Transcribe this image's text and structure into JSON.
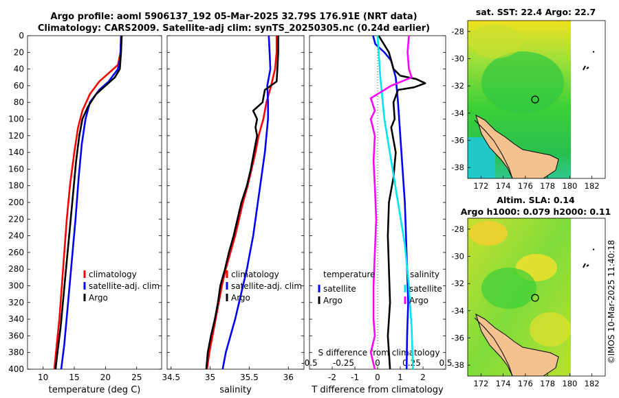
{
  "title": {
    "line1": "Argo profile: aoml 5906137_192 05-Mar-2025 32.79S 176.91E (NRT data)",
    "line2": "Climatology: CARS2009. Satellite-adj clim: synTS_20250305.nc (0.24d earlier)"
  },
  "credit": "©IMOS 10-Mar-2025 11:40:18",
  "colors": {
    "climatology": "#ff0000",
    "satellite": "#0000ff",
    "argo": "#000000",
    "magenta": "#ff00ff",
    "cyan": "#00e5ee",
    "land": "#f5c18e"
  },
  "chart_data": [
    {
      "type": "line",
      "name": "temperature-profile",
      "xlabel": "temperature (deg C)",
      "xlim": [
        7.5,
        29
      ],
      "xticks": [
        10,
        15,
        20,
        25
      ],
      "ylim": [
        0,
        400
      ],
      "yticks": [
        0,
        20,
        40,
        60,
        80,
        100,
        120,
        140,
        160,
        180,
        200,
        220,
        240,
        260,
        280,
        300,
        320,
        340,
        360,
        380,
        400
      ],
      "legend": {
        "position": "lower-right",
        "entries": [
          "climatology",
          "satellite-adj. clim",
          "Argo"
        ]
      },
      "series": [
        {
          "name": "climatology",
          "color": "#ff0000",
          "points": [
            [
              22.5,
              0
            ],
            [
              22.4,
              20
            ],
            [
              22.0,
              35
            ],
            [
              20.5,
              45
            ],
            [
              19.0,
              55
            ],
            [
              17.5,
              70
            ],
            [
              16.3,
              90
            ],
            [
              15.6,
              110
            ],
            [
              15.0,
              140
            ],
            [
              14.3,
              180
            ],
            [
              13.8,
              220
            ],
            [
              13.4,
              260
            ],
            [
              13.0,
              300
            ],
            [
              12.6,
              340
            ],
            [
              12.2,
              370
            ],
            [
              11.8,
              400
            ]
          ]
        },
        {
          "name": "satellite-adj. clim",
          "color": "#0000ff",
          "points": [
            [
              22.5,
              0
            ],
            [
              22.4,
              25
            ],
            [
              22.0,
              40
            ],
            [
              20.5,
              55
            ],
            [
              19.0,
              65
            ],
            [
              17.5,
              80
            ],
            [
              16.8,
              100
            ],
            [
              16.2,
              130
            ],
            [
              15.7,
              170
            ],
            [
              15.2,
              220
            ],
            [
              14.6,
              270
            ],
            [
              14.0,
              320
            ],
            [
              13.4,
              370
            ],
            [
              12.9,
              400
            ]
          ]
        },
        {
          "name": "Argo",
          "color": "#000000",
          "points": [
            [
              22.6,
              0
            ],
            [
              22.5,
              20
            ],
            [
              22.3,
              40
            ],
            [
              21.5,
              50
            ],
            [
              20.3,
              58
            ],
            [
              18.5,
              70
            ],
            [
              17.2,
              85
            ],
            [
              16.3,
              100
            ],
            [
              15.8,
              120
            ],
            [
              15.3,
              150
            ],
            [
              14.8,
              190
            ],
            [
              14.3,
              230
            ],
            [
              13.8,
              270
            ],
            [
              13.3,
              310
            ],
            [
              12.8,
              350
            ],
            [
              12.3,
              380
            ],
            [
              12.0,
              400
            ]
          ]
        }
      ]
    },
    {
      "type": "line",
      "name": "salinity-profile",
      "xlabel": "salinity",
      "xlim": [
        34.45,
        36.2
      ],
      "xticks": [
        34.5,
        35,
        35.5,
        36
      ],
      "xticklabels": [
        "34.5",
        "35",
        "35.5",
        "36"
      ],
      "ylim": [
        0,
        400
      ],
      "legend": {
        "position": "lower-right",
        "entries": [
          "climatology",
          "satellite-adj. clim",
          "Argo"
        ]
      },
      "series": [
        {
          "name": "climatology",
          "color": "#ff0000",
          "points": [
            [
              35.85,
              0
            ],
            [
              35.85,
              20
            ],
            [
              35.83,
              40
            ],
            [
              35.78,
              60
            ],
            [
              35.72,
              80
            ],
            [
              35.68,
              100
            ],
            [
              35.62,
              120
            ],
            [
              35.58,
              140
            ],
            [
              35.53,
              160
            ],
            [
              35.48,
              180
            ],
            [
              35.42,
              200
            ],
            [
              35.37,
              220
            ],
            [
              35.32,
              240
            ],
            [
              35.26,
              260
            ],
            [
              35.2,
              280
            ],
            [
              35.15,
              300
            ],
            [
              35.11,
              320
            ],
            [
              35.07,
              340
            ],
            [
              35.03,
              360
            ],
            [
              34.99,
              380
            ],
            [
              34.96,
              400
            ]
          ]
        },
        {
          "name": "satellite-adj. clim",
          "color": "#0000ff",
          "points": [
            [
              35.75,
              0
            ],
            [
              35.76,
              20
            ],
            [
              35.77,
              40
            ],
            [
              35.73,
              60
            ],
            [
              35.74,
              80
            ],
            [
              35.74,
              100
            ],
            [
              35.72,
              120
            ],
            [
              35.7,
              140
            ],
            [
              35.67,
              160
            ],
            [
              35.64,
              180
            ],
            [
              35.61,
              200
            ],
            [
              35.58,
              220
            ],
            [
              35.55,
              240
            ],
            [
              35.51,
              260
            ],
            [
              35.47,
              280
            ],
            [
              35.42,
              300
            ],
            [
              35.37,
              320
            ],
            [
              35.32,
              340
            ],
            [
              35.26,
              360
            ],
            [
              35.2,
              380
            ],
            [
              35.16,
              400
            ]
          ]
        },
        {
          "name": "Argo",
          "color": "#000000",
          "points": [
            [
              35.87,
              0
            ],
            [
              35.87,
              20
            ],
            [
              35.86,
              40
            ],
            [
              35.85,
              55
            ],
            [
              35.7,
              65
            ],
            [
              35.67,
              80
            ],
            [
              35.55,
              90
            ],
            [
              35.6,
              100
            ],
            [
              35.58,
              110
            ],
            [
              35.6,
              120
            ],
            [
              35.56,
              140
            ],
            [
              35.52,
              160
            ],
            [
              35.47,
              180
            ],
            [
              35.4,
              200
            ],
            [
              35.35,
              220
            ],
            [
              35.3,
              240
            ],
            [
              35.24,
              260
            ],
            [
              35.19,
              280
            ],
            [
              35.13,
              300
            ],
            [
              35.1,
              320
            ],
            [
              35.06,
              340
            ],
            [
              35.01,
              360
            ],
            [
              34.97,
              380
            ],
            [
              34.95,
              400
            ]
          ]
        }
      ]
    },
    {
      "type": "line",
      "name": "difference-profile",
      "xlabel": "T difference from climatology",
      "xlim": [
        -3,
        3
      ],
      "xticks": [
        -2,
        -1,
        0,
        1,
        2
      ],
      "top_xlabel": "S difference from climatology",
      "top_xticks": [
        -0.5,
        -0.25,
        0,
        0.25,
        0.5
      ],
      "top_xticklabels": [
        "-0.5",
        "-0.25",
        "0",
        "0.25",
        "0.5"
      ],
      "ylim": [
        0,
        400
      ],
      "legend": {
        "position": "lower",
        "temperature_title": "temperature",
        "salinity_title": "salinity",
        "temperature_entries": [
          "satellite",
          "Argo"
        ],
        "salinity_entries": [
          "satellite",
          "Argo"
        ]
      },
      "series": [
        {
          "name": "temperature satellite",
          "color": "#0000ff",
          "points": [
            [
              -0.2,
              0
            ],
            [
              -0.1,
              10
            ],
            [
              0.3,
              20
            ],
            [
              0.6,
              30
            ],
            [
              0.8,
              50
            ],
            [
              0.9,
              80
            ],
            [
              1.0,
              120
            ],
            [
              1.1,
              160
            ],
            [
              1.2,
              200
            ],
            [
              1.25,
              240
            ],
            [
              1.3,
              280
            ],
            [
              1.35,
              320
            ],
            [
              1.3,
              360
            ],
            [
              1.28,
              400
            ]
          ]
        },
        {
          "name": "temperature Argo",
          "color": "#000000",
          "points": [
            [
              0.05,
              0
            ],
            [
              0.5,
              20
            ],
            [
              0.7,
              40
            ],
            [
              1.0,
              48
            ],
            [
              1.7,
              52
            ],
            [
              2.1,
              57
            ],
            [
              1.6,
              62
            ],
            [
              0.9,
              65
            ],
            [
              0.7,
              80
            ],
            [
              0.75,
              100
            ],
            [
              0.6,
              110
            ],
            [
              0.8,
              140
            ],
            [
              0.7,
              170
            ],
            [
              0.5,
              200
            ],
            [
              0.45,
              240
            ],
            [
              0.5,
              280
            ],
            [
              0.55,
              320
            ],
            [
              0.45,
              360
            ],
            [
              0.55,
              400
            ]
          ]
        },
        {
          "name": "salinity satellite",
          "color": "#00e5ee",
          "points": [
            [
              0.0,
              0
            ],
            [
              0.02,
              50
            ],
            [
              0.05,
              100
            ],
            [
              0.1,
              150
            ],
            [
              0.15,
              200
            ],
            [
              0.2,
              250
            ],
            [
              0.23,
              300
            ],
            [
              0.25,
              350
            ],
            [
              0.26,
              400
            ]
          ]
        },
        {
          "name": "salinity Argo",
          "color": "#ff00ff",
          "points": [
            [
              0.23,
              0
            ],
            [
              0.22,
              20
            ],
            [
              0.23,
              40
            ],
            [
              0.25,
              50
            ],
            [
              0.1,
              60
            ],
            [
              -0.05,
              75
            ],
            [
              -0.02,
              90
            ],
            [
              -0.05,
              100
            ],
            [
              -0.02,
              120
            ],
            [
              -0.03,
              150
            ],
            [
              -0.02,
              180
            ],
            [
              -0.01,
              220
            ],
            [
              -0.02,
              260
            ],
            [
              -0.03,
              300
            ],
            [
              -0.03,
              340
            ],
            [
              -0.02,
              360
            ],
            [
              -0.05,
              380
            ],
            [
              -0.02,
              400
            ]
          ]
        }
      ]
    },
    {
      "type": "heatmap",
      "name": "sst-map",
      "title": "sat. SST: 22.4 Argo: 22.7",
      "xticks": [
        172,
        174,
        176,
        178,
        180,
        182
      ],
      "yticks": [
        -28,
        -30,
        -32,
        -34,
        -36,
        -38
      ],
      "xlim": [
        170.8,
        183.2
      ],
      "ylim": [
        -38.8,
        -27.2
      ],
      "argo_position": {
        "lon": 176.91,
        "lat": -32.79
      }
    },
    {
      "type": "heatmap",
      "name": "sla-map",
      "title_line1": "Altim. SLA: 0.14",
      "title_line2": "Argo h1000: 0.079 h2000: 0.11",
      "xticks": [
        172,
        174,
        176,
        178,
        180,
        182
      ],
      "yticks": [
        -28,
        -30,
        -32,
        -34,
        -36,
        -38
      ],
      "xlim": [
        170.8,
        183.2
      ],
      "ylim": [
        -38.8,
        -27.2
      ],
      "argo_position": {
        "lon": 176.91,
        "lat": -32.79
      }
    }
  ]
}
